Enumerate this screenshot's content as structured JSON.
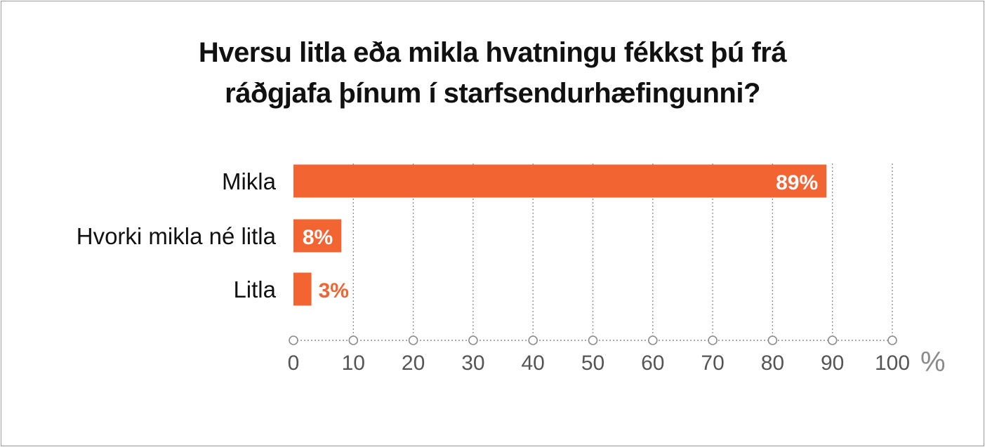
{
  "chart_data": {
    "type": "bar",
    "orientation": "horizontal",
    "title_lines": [
      "Hversu litla eða mikla hvatningu fékkst þú frá",
      "ráðgjafa þínum í starfsendurhæfingunni?"
    ],
    "categories": [
      "Mikla",
      "Hvorki mikla né litla",
      "Litla"
    ],
    "values": [
      89,
      8,
      3
    ],
    "data_labels": [
      "89%",
      "8%",
      "3%"
    ],
    "xlim": [
      0,
      100
    ],
    "xticks": [
      0,
      10,
      20,
      30,
      40,
      50,
      60,
      70,
      80,
      90,
      100
    ],
    "x_unit": "%",
    "grid": "vertical dotted",
    "colors": {
      "bar": "#f26532",
      "label_inside": "#ffffff",
      "label_outside": "#f26532",
      "axis": "#8c8c8c",
      "tick_text": "#555555",
      "category_text": "#111111"
    }
  }
}
